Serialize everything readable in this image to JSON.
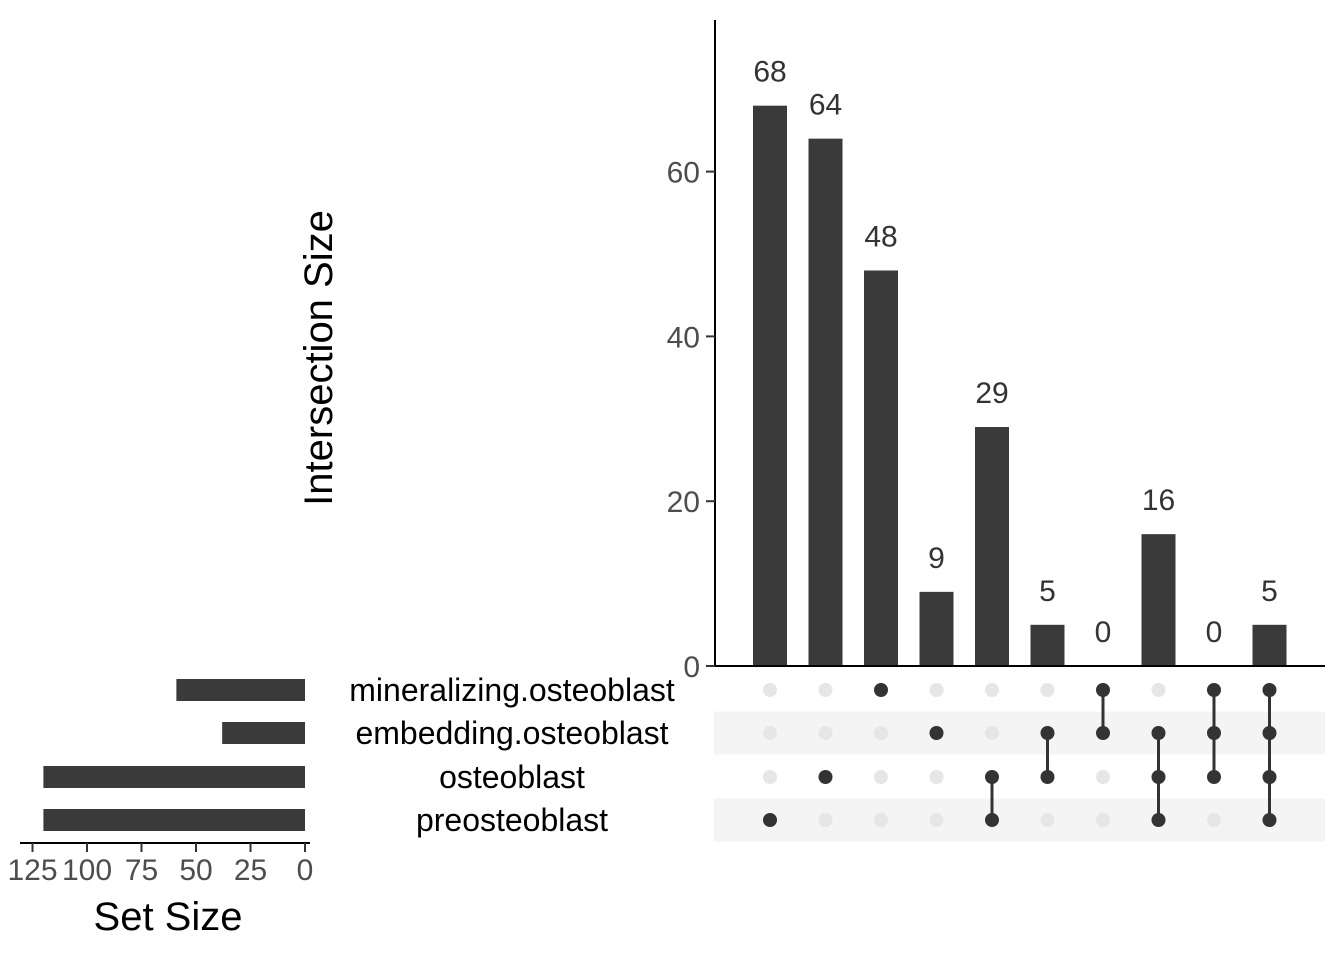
{
  "chart_data": {
    "type": "upset",
    "sets": [
      "mineralizing.osteoblast",
      "embedding.osteoblast",
      "osteoblast",
      "preosteoblast"
    ],
    "set_sizes": [
      59,
      38,
      120,
      120
    ],
    "set_size_axis": {
      "title": "Set Size",
      "ticks": [
        125,
        100,
        75,
        50,
        25,
        0
      ],
      "reversed": true
    },
    "intersection_axis": {
      "title": "Intersection Size",
      "ticks": [
        0,
        20,
        40,
        60
      ],
      "ylim": [
        0,
        78
      ]
    },
    "intersections": [
      {
        "members": [
          "preosteoblast"
        ],
        "size": 68
      },
      {
        "members": [
          "osteoblast"
        ],
        "size": 64
      },
      {
        "members": [
          "mineralizing.osteoblast"
        ],
        "size": 48
      },
      {
        "members": [
          "embedding.osteoblast"
        ],
        "size": 9
      },
      {
        "members": [
          "osteoblast",
          "preosteoblast"
        ],
        "size": 29
      },
      {
        "members": [
          "embedding.osteoblast",
          "osteoblast"
        ],
        "size": 5
      },
      {
        "members": [
          "mineralizing.osteoblast",
          "embedding.osteoblast"
        ],
        "size": 0
      },
      {
        "members": [
          "embedding.osteoblast",
          "osteoblast",
          "preosteoblast"
        ],
        "size": 16
      },
      {
        "members": [
          "mineralizing.osteoblast",
          "embedding.osteoblast",
          "osteoblast"
        ],
        "size": 0
      },
      {
        "members": [
          "mineralizing.osteoblast",
          "embedding.osteoblast",
          "osteoblast",
          "preosteoblast"
        ],
        "size": 5
      }
    ],
    "colors": {
      "bar": "#3a3a3a",
      "dot_active": "#333333",
      "dot_inactive": "#e6e6e6",
      "stripe": "#f4f4f4"
    }
  }
}
